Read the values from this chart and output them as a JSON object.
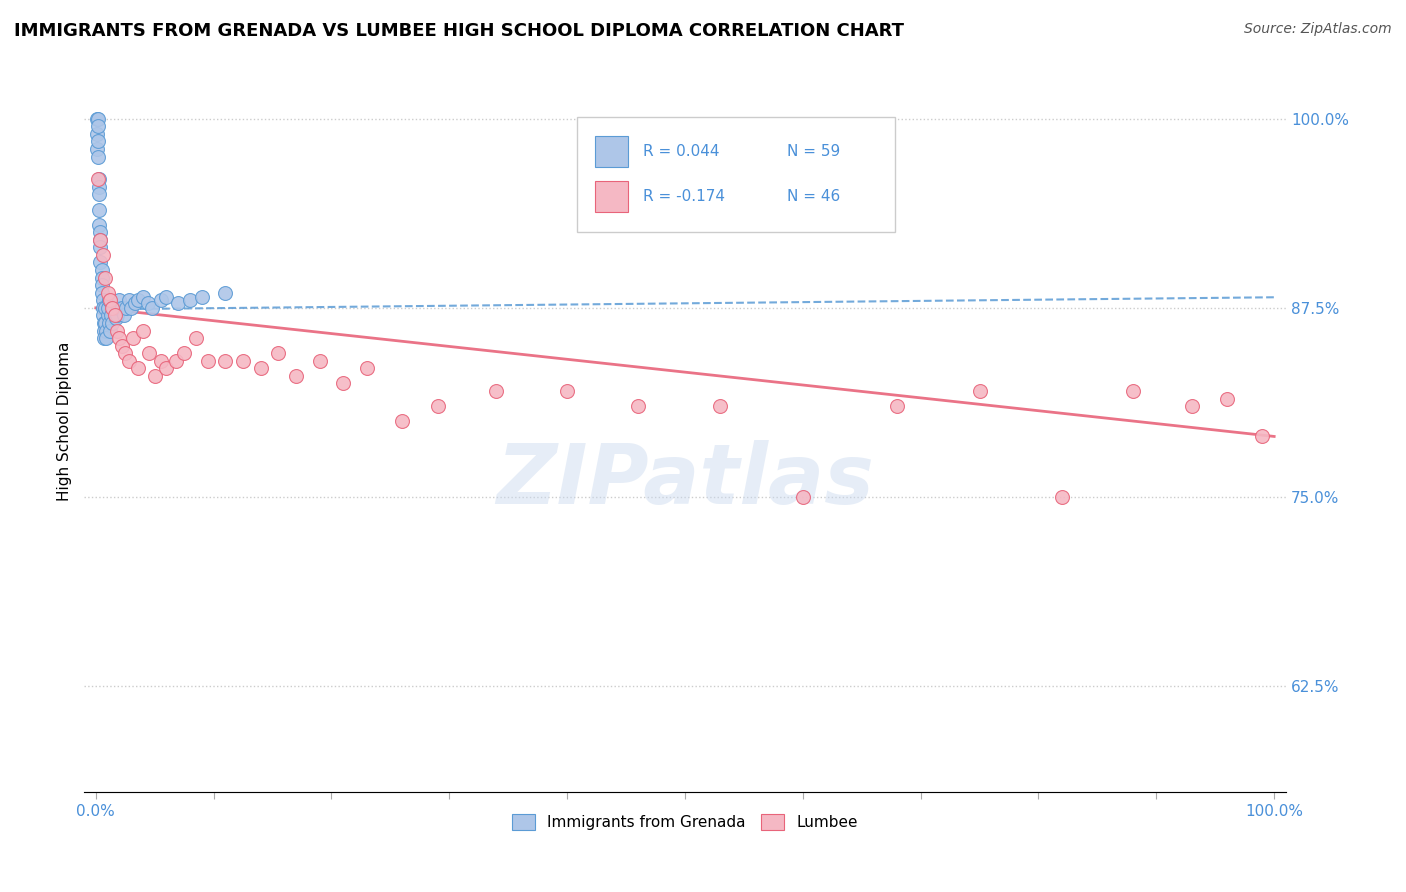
{
  "title": "IMMIGRANTS FROM GRENADA VS LUMBEE HIGH SCHOOL DIPLOMA CORRELATION CHART",
  "source": "Source: ZipAtlas.com",
  "ylabel": "High School Diploma",
  "ytick_labels": [
    "100.0%",
    "87.5%",
    "75.0%",
    "62.5%"
  ],
  "ytick_values": [
    1.0,
    0.875,
    0.75,
    0.625
  ],
  "legend_blue_r": "R = 0.044",
  "legend_blue_n": "N = 59",
  "legend_pink_r": "R = -0.174",
  "legend_pink_n": "N = 46",
  "blue_color": "#aec6e8",
  "pink_color": "#f5b8c4",
  "blue_line_color": "#5b9bd5",
  "pink_line_color": "#e8647a",
  "legend_r_color": "#4a90d9",
  "watermark": "ZIPatlas",
  "blue_scatter_x": [
    0.001,
    0.001,
    0.001,
    0.002,
    0.002,
    0.002,
    0.002,
    0.003,
    0.003,
    0.003,
    0.003,
    0.003,
    0.004,
    0.004,
    0.004,
    0.004,
    0.005,
    0.005,
    0.005,
    0.005,
    0.006,
    0.006,
    0.006,
    0.007,
    0.007,
    0.007,
    0.008,
    0.008,
    0.009,
    0.009,
    0.01,
    0.01,
    0.011,
    0.011,
    0.012,
    0.013,
    0.014,
    0.015,
    0.016,
    0.017,
    0.018,
    0.019,
    0.02,
    0.022,
    0.024,
    0.026,
    0.028,
    0.03,
    0.033,
    0.036,
    0.04,
    0.044,
    0.048,
    0.055,
    0.06,
    0.07,
    0.08,
    0.09,
    0.11
  ],
  "blue_scatter_y": [
    1.0,
    0.99,
    0.98,
    1.0,
    0.995,
    0.985,
    0.975,
    0.96,
    0.955,
    0.95,
    0.94,
    0.93,
    0.925,
    0.92,
    0.915,
    0.905,
    0.9,
    0.895,
    0.89,
    0.885,
    0.88,
    0.875,
    0.87,
    0.865,
    0.86,
    0.855,
    0.875,
    0.865,
    0.86,
    0.855,
    0.87,
    0.875,
    0.88,
    0.865,
    0.86,
    0.87,
    0.865,
    0.875,
    0.87,
    0.868,
    0.87,
    0.875,
    0.88,
    0.875,
    0.87,
    0.875,
    0.88,
    0.875,
    0.878,
    0.88,
    0.882,
    0.878,
    0.875,
    0.88,
    0.882,
    0.878,
    0.88,
    0.882,
    0.885
  ],
  "pink_scatter_x": [
    0.002,
    0.004,
    0.006,
    0.008,
    0.01,
    0.012,
    0.014,
    0.016,
    0.018,
    0.02,
    0.022,
    0.025,
    0.028,
    0.032,
    0.036,
    0.04,
    0.045,
    0.05,
    0.055,
    0.06,
    0.068,
    0.075,
    0.085,
    0.095,
    0.11,
    0.125,
    0.14,
    0.155,
    0.17,
    0.19,
    0.21,
    0.23,
    0.26,
    0.29,
    0.34,
    0.4,
    0.46,
    0.53,
    0.6,
    0.68,
    0.75,
    0.82,
    0.88,
    0.93,
    0.96,
    0.99
  ],
  "pink_scatter_y": [
    0.96,
    0.92,
    0.91,
    0.895,
    0.885,
    0.88,
    0.875,
    0.87,
    0.86,
    0.855,
    0.85,
    0.845,
    0.84,
    0.855,
    0.835,
    0.86,
    0.845,
    0.83,
    0.84,
    0.835,
    0.84,
    0.845,
    0.855,
    0.84,
    0.84,
    0.84,
    0.835,
    0.845,
    0.83,
    0.84,
    0.825,
    0.835,
    0.8,
    0.81,
    0.82,
    0.82,
    0.81,
    0.81,
    0.75,
    0.81,
    0.82,
    0.75,
    0.82,
    0.81,
    0.815,
    0.79
  ],
  "xlim": [
    0.0,
    1.0
  ],
  "ylim": [
    0.555,
    1.045
  ],
  "blue_trend_x": [
    0.0,
    1.0
  ],
  "blue_trend_y": [
    0.874,
    0.882
  ],
  "pink_trend_x": [
    0.0,
    1.0
  ],
  "pink_trend_y": [
    0.875,
    0.79
  ],
  "title_fontsize": 13
}
